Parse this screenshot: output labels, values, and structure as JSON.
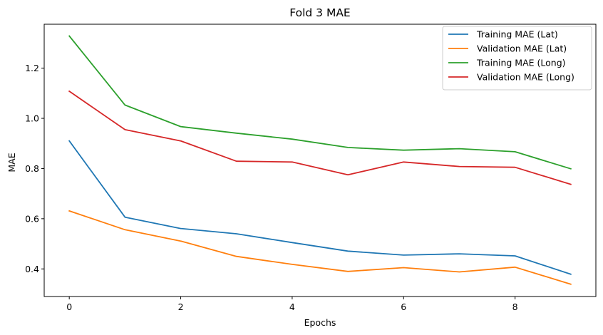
{
  "chart_data": {
    "type": "line",
    "title": "Fold 3 MAE",
    "xlabel": "Epochs",
    "ylabel": "MAE",
    "x": [
      0,
      1,
      2,
      3,
      4,
      5,
      6,
      7,
      8,
      9
    ],
    "xlim": [
      -0.45,
      9.45
    ],
    "ylim": [
      0.29,
      1.375
    ],
    "xticks": [
      0,
      2,
      4,
      6,
      8
    ],
    "yticks": [
      0.4,
      0.6,
      0.8,
      1.0,
      1.2
    ],
    "xtick_labels": [
      "0",
      "2",
      "4",
      "6",
      "8"
    ],
    "ytick_labels": [
      "0.4",
      "0.6",
      "0.8",
      "1.0",
      "1.2"
    ],
    "grid": false,
    "legend_position": "top-right",
    "series": [
      {
        "name": "Training MAE (Lat)",
        "color": "#1f77b4",
        "values": [
          0.91,
          0.606,
          0.561,
          0.54,
          0.505,
          0.471,
          0.455,
          0.46,
          0.452,
          0.379
        ]
      },
      {
        "name": "Validation MAE (Lat)",
        "color": "#ff7f0e",
        "values": [
          0.631,
          0.556,
          0.511,
          0.45,
          0.418,
          0.39,
          0.405,
          0.388,
          0.407,
          0.339
        ]
      },
      {
        "name": "Training MAE (Long)",
        "color": "#2ca02c",
        "values": [
          1.328,
          1.053,
          0.967,
          0.941,
          0.917,
          0.884,
          0.873,
          0.879,
          0.867,
          0.799
        ]
      },
      {
        "name": "Validation MAE (Long)",
        "color": "#d62728",
        "values": [
          1.108,
          0.955,
          0.91,
          0.829,
          0.826,
          0.775,
          0.826,
          0.808,
          0.805,
          0.737
        ]
      }
    ]
  }
}
